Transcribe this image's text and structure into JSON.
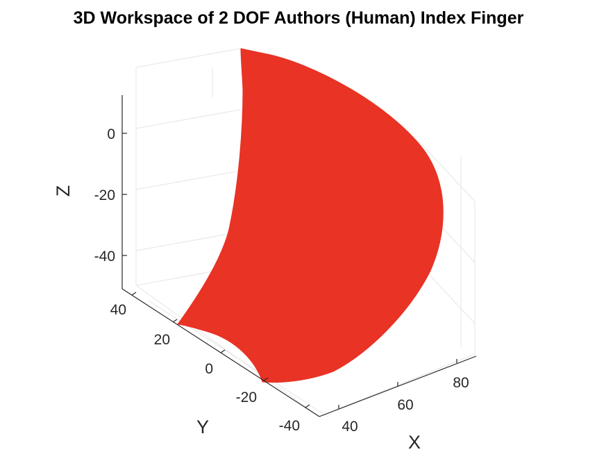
{
  "chart_data": {
    "type": "surface",
    "title": "3D Workspace of 2 DOF Authors (Human) Index Finger",
    "xlabel": "X",
    "ylabel": "Y",
    "zlabel": "Z",
    "x_ticks": [
      "40",
      "60",
      "80"
    ],
    "y_ticks": [
      "40",
      "20",
      "0",
      "-20",
      "-40"
    ],
    "z_ticks": [
      "0",
      "-20",
      "-40"
    ],
    "xlim": [
      35,
      90
    ],
    "ylim": [
      -45,
      45
    ],
    "zlim": [
      -52,
      12
    ],
    "grid": true,
    "surface_color": "#E83325",
    "description_of_region": "Filled reachable workspace surface"
  },
  "colors": {
    "surface": "#E83325",
    "grid": "#E5E5E5",
    "axis": "#262626"
  }
}
